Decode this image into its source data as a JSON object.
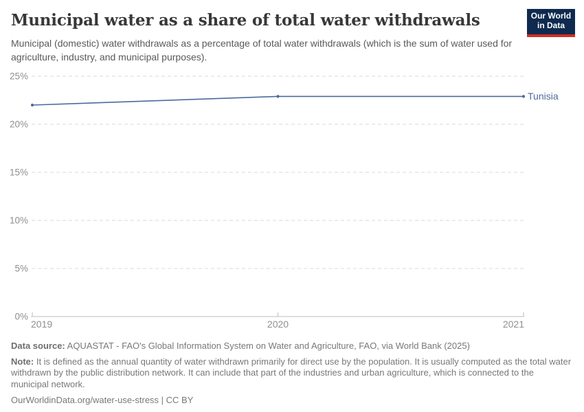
{
  "header": {
    "title": "Municipal water as a share of total water withdrawals",
    "subtitle": "Municipal (domestic) water withdrawals as a percentage of total water withdrawals (which is the sum of water used for agriculture, industry, and municipal purposes).",
    "logo": {
      "line1": "Our World",
      "line2": "in Data",
      "bg_color": "#0f2a4f",
      "accent_color": "#cf2e22"
    }
  },
  "chart_data": {
    "type": "line",
    "title": "Municipal water as a share of total water withdrawals",
    "x": [
      2019,
      2020,
      2021
    ],
    "xtick_labels": [
      "2019",
      "2020",
      "2021"
    ],
    "series": [
      {
        "name": "Tunisia",
        "values": [
          22.0,
          22.9,
          22.9
        ],
        "color": "#4c6a9c"
      }
    ],
    "xlabel": "",
    "ylabel": "",
    "ylim": [
      0,
      25
    ],
    "yticks": [
      0,
      5,
      10,
      15,
      20,
      25
    ],
    "ytick_labels": [
      "0%",
      "5%",
      "10%",
      "15%",
      "20%",
      "25%"
    ],
    "grid": true,
    "grid_style": "dashed",
    "legend_position": "end-of-line",
    "colors": {
      "gridline": "#dadada",
      "axis_line": "#c9c9c9",
      "tick_label": "#8f8f8f"
    }
  },
  "footer": {
    "data_source_label": "Data source:",
    "data_source_text": " AQUASTAT - FAO's Global Information System on Water and Agriculture, FAO, via World Bank (2025)",
    "note_label": "Note:",
    "note_text": " It is defined as the annual quantity of water withdrawn primarily for direct use by the population. It is usually computed as the total water withdrawn by the public distribution network. It can include that part of the industries and urban agriculture, which is connected to the municipal network.",
    "url": "OurWorldinData.org/water-use-stress",
    "separator": " | ",
    "license": "CC BY"
  }
}
